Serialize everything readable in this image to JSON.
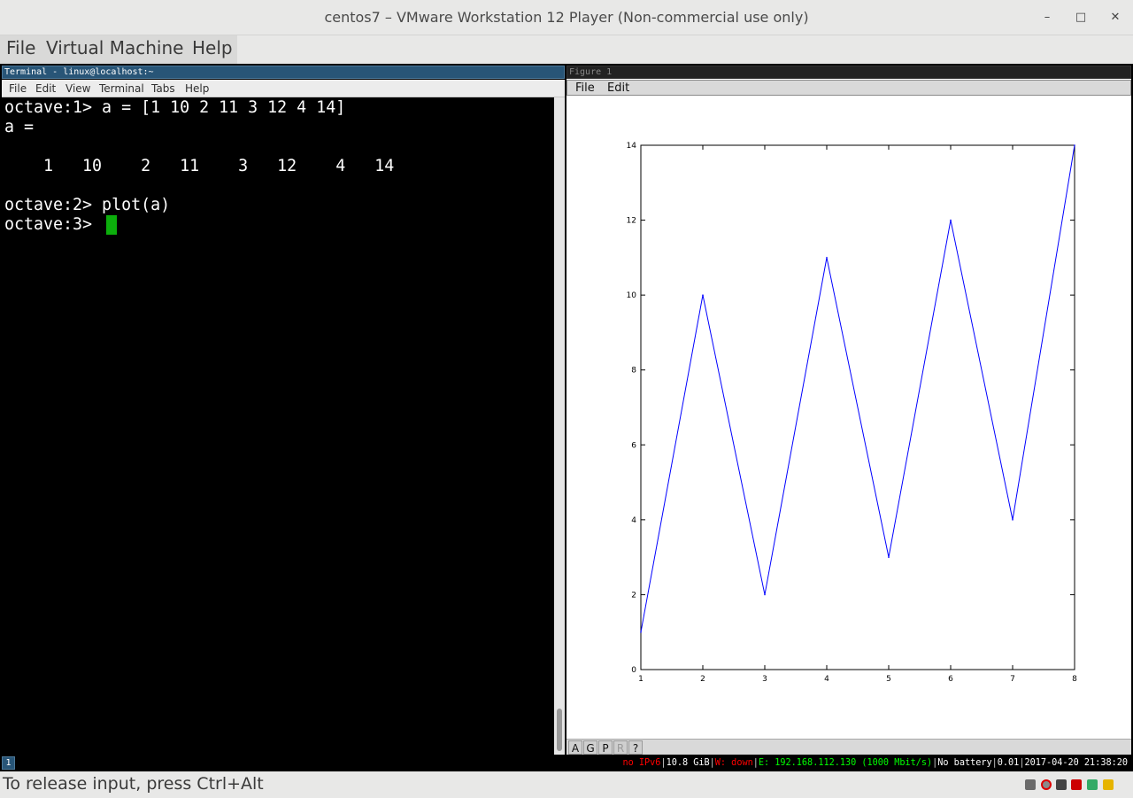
{
  "host": {
    "title": "centos7 – VMware Workstation 12 Player (Non-commercial use only)",
    "controls": {
      "minimize": "–",
      "maximize": "□",
      "close": "✕"
    },
    "menu": [
      "File",
      "Virtual Machine",
      "Help"
    ],
    "footer": "To release input, press Ctrl+Alt",
    "device_icons": [
      "hard-disk-icon",
      "cd-rom-icon",
      "network-icon",
      "usb-icon",
      "sound-icon",
      "message-icon"
    ]
  },
  "terminal": {
    "title": "Terminal - linux@localhost:~",
    "menu": [
      "File",
      "Edit",
      "View",
      "Terminal",
      "Tabs",
      "Help"
    ],
    "lines": [
      "octave:1> a = [1 10 2 11 3 12 4 14]",
      "a =",
      "",
      "    1   10    2   11    3   12    4   14",
      "",
      "octave:2> plot(a)",
      "octave:3> "
    ]
  },
  "figure": {
    "title": "Figure 1",
    "menu": [
      "File",
      "Edit"
    ],
    "toolbar": [
      "A",
      "G",
      "P",
      "R",
      "?"
    ]
  },
  "statusbar": {
    "workspace": "1",
    "ipv6": "no IPv6",
    "disk": "10.8 GiB",
    "wifi": "W: down",
    "ethernet": "E: 192.168.112.130 (1000 Mbit/s)",
    "battery": "No battery",
    "load": "0.01",
    "datetime": "2017-04-20 21:38:20"
  },
  "colors": {
    "term_title_bg": "#285577",
    "cursor": "#0cae0c",
    "plot_line": "#0000ff"
  },
  "chart_data": {
    "type": "line",
    "x": [
      1,
      2,
      3,
      4,
      5,
      6,
      7,
      8
    ],
    "series": [
      {
        "values": [
          1,
          10,
          2,
          11,
          3,
          12,
          4,
          14
        ],
        "color": "#0000ff"
      }
    ],
    "title": "",
    "xlabel": "",
    "ylabel": "",
    "xlim": [
      1,
      8
    ],
    "ylim": [
      0,
      14
    ],
    "xticks": [
      "1",
      "2",
      "3",
      "4",
      "5",
      "6",
      "7",
      "8"
    ],
    "yticks": [
      "0",
      "2",
      "4",
      "6",
      "8",
      "10",
      "12",
      "14"
    ],
    "grid": false
  }
}
